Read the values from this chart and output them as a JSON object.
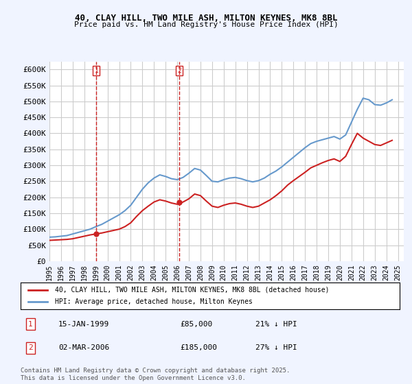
{
  "title": "40, CLAY HILL, TWO MILE ASH, MILTON KEYNES, MK8 8BL",
  "subtitle": "Price paid vs. HM Land Registry's House Price Index (HPI)",
  "xlabel": "",
  "ylabel": "",
  "ylim": [
    0,
    625000
  ],
  "yticks": [
    0,
    50000,
    100000,
    150000,
    200000,
    250000,
    300000,
    350000,
    400000,
    450000,
    500000,
    550000,
    600000
  ],
  "ytick_labels": [
    "£0",
    "£50K",
    "£100K",
    "£150K",
    "£200K",
    "£250K",
    "£300K",
    "£350K",
    "£400K",
    "£450K",
    "£500K",
    "£550K",
    "£600K"
  ],
  "background_color": "#f0f4ff",
  "plot_bg_color": "#ffffff",
  "grid_color": "#cccccc",
  "hpi_color": "#6699cc",
  "price_color": "#cc2222",
  "marker1_date_idx": 4,
  "marker2_date_idx": 11,
  "marker1_label": "1",
  "marker2_label": "2",
  "annotation1": "15-JAN-1999    £85,000    21% ↓ HPI",
  "annotation2": "02-MAR-2006    £185,000    27% ↓ HPI",
  "legend_line1": "40, CLAY HILL, TWO MILE ASH, MILTON KEYNES, MK8 8BL (detached house)",
  "legend_line2": "HPI: Average price, detached house, Milton Keynes",
  "footnote": "Contains HM Land Registry data © Crown copyright and database right 2025.\nThis data is licensed under the Open Government Licence v3.0.",
  "hpi_data": {
    "years": [
      1995,
      1995.5,
      1996,
      1996.5,
      1997,
      1997.5,
      1998,
      1998.5,
      1999,
      1999.5,
      2000,
      2000.5,
      2001,
      2001.5,
      2002,
      2002.5,
      2003,
      2003.5,
      2004,
      2004.5,
      2005,
      2005.5,
      2006,
      2006.5,
      2007,
      2007.5,
      2008,
      2008.5,
      2009,
      2009.5,
      2010,
      2010.5,
      2011,
      2011.5,
      2012,
      2012.5,
      2013,
      2013.5,
      2014,
      2014.5,
      2015,
      2015.5,
      2016,
      2016.5,
      2017,
      2017.5,
      2018,
      2018.5,
      2019,
      2019.5,
      2020,
      2020.5,
      2021,
      2021.5,
      2022,
      2022.5,
      2023,
      2023.5,
      2024,
      2024.5
    ],
    "values": [
      75000,
      76000,
      78000,
      80000,
      85000,
      90000,
      95000,
      100000,
      108000,
      115000,
      125000,
      135000,
      145000,
      158000,
      175000,
      200000,
      225000,
      245000,
      260000,
      270000,
      265000,
      258000,
      255000,
      262000,
      275000,
      290000,
      285000,
      268000,
      250000,
      248000,
      255000,
      260000,
      262000,
      258000,
      252000,
      248000,
      252000,
      260000,
      272000,
      282000,
      295000,
      310000,
      325000,
      340000,
      355000,
      368000,
      375000,
      380000,
      385000,
      390000,
      382000,
      395000,
      435000,
      475000,
      510000,
      505000,
      490000,
      488000,
      495000,
      505000
    ]
  },
  "price_data": {
    "years": [
      1995,
      1995.5,
      1996,
      1996.5,
      1997,
      1997.5,
      1998,
      1998.5,
      1999,
      1999.5,
      2000,
      2000.5,
      2001,
      2001.5,
      2002,
      2002.5,
      2003,
      2003.5,
      2004,
      2004.5,
      2005,
      2005.5,
      2006,
      2006.5,
      2007,
      2007.5,
      2008,
      2008.5,
      2009,
      2009.5,
      2010,
      2010.5,
      2011,
      2011.5,
      2012,
      2012.5,
      2013,
      2013.5,
      2014,
      2014.5,
      2015,
      2015.5,
      2016,
      2016.5,
      2017,
      2017.5,
      2018,
      2018.5,
      2019,
      2019.5,
      2020,
      2020.5,
      2021,
      2021.5,
      2022,
      2022.5,
      2023,
      2023.5,
      2024,
      2024.5
    ],
    "values": [
      65000,
      66000,
      67000,
      68000,
      70000,
      74000,
      78000,
      82000,
      85000,
      88000,
      92000,
      96000,
      100000,
      108000,
      120000,
      140000,
      158000,
      172000,
      185000,
      192000,
      188000,
      182000,
      178000,
      185000,
      195000,
      210000,
      205000,
      188000,
      172000,
      168000,
      175000,
      180000,
      182000,
      178000,
      172000,
      168000,
      172000,
      182000,
      192000,
      205000,
      220000,
      238000,
      252000,
      265000,
      278000,
      292000,
      300000,
      308000,
      315000,
      320000,
      312000,
      328000,
      365000,
      400000,
      385000,
      375000,
      365000,
      362000,
      370000,
      378000
    ]
  },
  "sale1_year": 1999.04,
  "sale1_price": 85000,
  "sale2_year": 2006.17,
  "sale2_price": 185000,
  "xtick_years": [
    1995,
    1996,
    1997,
    1998,
    1999,
    2000,
    2001,
    2002,
    2003,
    2004,
    2005,
    2006,
    2007,
    2008,
    2009,
    2010,
    2011,
    2012,
    2013,
    2014,
    2015,
    2016,
    2017,
    2018,
    2019,
    2020,
    2021,
    2022,
    2023,
    2024,
    2025
  ]
}
